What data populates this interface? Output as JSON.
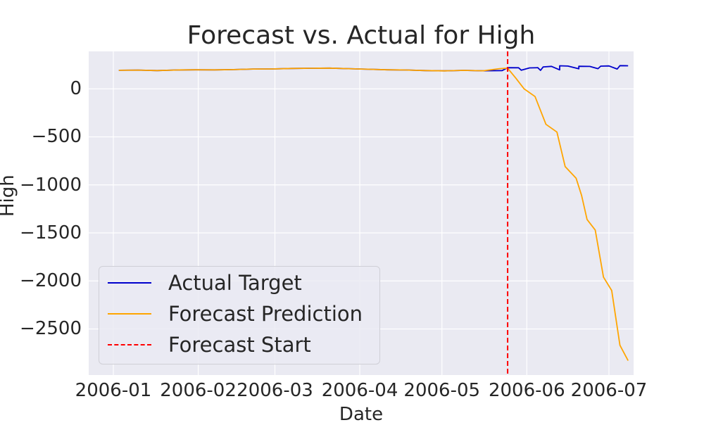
{
  "chart_data": {
    "type": "line",
    "title": "Forecast vs. Actual for High",
    "xlabel": "Date",
    "ylabel": "High",
    "x_ticks": [
      "2006-01",
      "2006-02",
      "2006-03",
      "2006-04",
      "2006-05",
      "2006-06",
      "2006-07"
    ],
    "y_ticks": [
      "0",
      "−500",
      "−1000",
      "−1500",
      "−2000",
      "−2500"
    ],
    "xlim": [
      "2005-12-23",
      "2006-07-10"
    ],
    "ylim": [
      -2980,
      390
    ],
    "grid": true,
    "legend_position": "bottom-left",
    "forecast_start": "2006-05-25",
    "series": [
      {
        "name": "Actual Target",
        "color": "#0000cc",
        "points": [
          [
            "2006-01-03",
            193
          ],
          [
            "2006-01-10",
            195
          ],
          [
            "2006-01-17",
            190
          ],
          [
            "2006-01-24",
            196
          ],
          [
            "2006-01-31",
            198
          ],
          [
            "2006-02-07",
            197
          ],
          [
            "2006-02-14",
            200
          ],
          [
            "2006-02-21",
            206
          ],
          [
            "2006-02-28",
            207
          ],
          [
            "2006-03-07",
            212
          ],
          [
            "2006-03-14",
            214
          ],
          [
            "2006-03-21",
            216
          ],
          [
            "2006-03-28",
            210
          ],
          [
            "2006-04-04",
            204
          ],
          [
            "2006-04-11",
            198
          ],
          [
            "2006-04-18",
            196
          ],
          [
            "2006-04-25",
            190
          ],
          [
            "2006-05-02",
            187
          ],
          [
            "2006-05-09",
            192
          ],
          [
            "2006-05-16",
            188
          ],
          [
            "2006-05-23",
            190
          ],
          [
            "2006-05-30",
            194
          ],
          [
            "2006-06-06",
            192
          ],
          [
            "2006-06-13",
            197
          ],
          [
            "2006-06-20",
            208
          ],
          [
            "2006-06-27",
            210
          ],
          [
            "2006-07-04",
            206
          ],
          [
            "2006-05-25",
            220
          ],
          [
            "2006-05-29",
            219
          ],
          [
            "2006-06-02",
            218
          ],
          [
            "2006-06-05",
            220
          ],
          [
            "2006-06-07",
            228
          ],
          [
            "2006-06-10",
            234
          ],
          [
            "2006-06-13",
            240
          ],
          [
            "2006-06-16",
            237
          ],
          [
            "2006-06-20",
            235
          ],
          [
            "2006-06-24",
            233
          ],
          [
            "2006-06-28",
            236
          ],
          [
            "2006-07-01",
            238
          ],
          [
            "2006-07-05",
            241
          ],
          [
            "2006-07-08",
            240
          ]
        ]
      },
      {
        "name": "Forecast Prediction",
        "color": "#ffa500",
        "points": [
          [
            "2006-01-03",
            193
          ],
          [
            "2006-01-10",
            195
          ],
          [
            "2006-01-17",
            190
          ],
          [
            "2006-01-24",
            196
          ],
          [
            "2006-01-31",
            198
          ],
          [
            "2006-02-07",
            197
          ],
          [
            "2006-02-14",
            200
          ],
          [
            "2006-02-21",
            206
          ],
          [
            "2006-02-28",
            207
          ],
          [
            "2006-03-07",
            212
          ],
          [
            "2006-03-14",
            214
          ],
          [
            "2006-03-21",
            216
          ],
          [
            "2006-03-28",
            210
          ],
          [
            "2006-04-04",
            204
          ],
          [
            "2006-04-11",
            198
          ],
          [
            "2006-04-18",
            196
          ],
          [
            "2006-04-25",
            190
          ],
          [
            "2006-05-02",
            187
          ],
          [
            "2006-05-09",
            192
          ],
          [
            "2006-05-16",
            188
          ],
          [
            "2006-05-22",
            210
          ],
          [
            "2006-05-25",
            215
          ],
          [
            "2006-05-28",
            110
          ],
          [
            "2006-05-31",
            0
          ],
          [
            "2006-06-04",
            -80
          ],
          [
            "2006-06-08",
            -370
          ],
          [
            "2006-06-12",
            -450
          ],
          [
            "2006-06-15",
            -810
          ],
          [
            "2006-06-19",
            -930
          ],
          [
            "2006-06-21",
            -1110
          ],
          [
            "2006-06-23",
            -1360
          ],
          [
            "2006-06-26",
            -1470
          ],
          [
            "2006-06-29",
            -1960
          ],
          [
            "2006-07-02",
            -2100
          ],
          [
            "2006-07-05",
            -2670
          ],
          [
            "2006-07-08",
            -2830
          ]
        ]
      },
      {
        "name": "Forecast Start",
        "color": "#ff0000",
        "style": "dashed"
      }
    ]
  }
}
